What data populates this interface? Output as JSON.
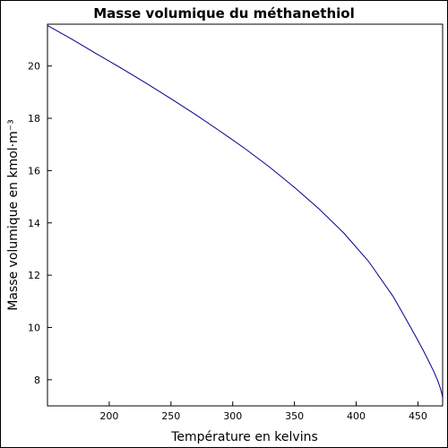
{
  "chart_data": {
    "type": "line",
    "title": "Masse volumique du méthanethiol",
    "xlabel": "Température en kelvins",
    "ylabel": "Masse volumique en kmol·m⁻³",
    "xlim": [
      150,
      470
    ],
    "ylim": [
      7,
      21.6
    ],
    "xticks": [
      200,
      250,
      300,
      350,
      400,
      450
    ],
    "yticks": [
      8,
      10,
      12,
      14,
      16,
      18,
      20
    ],
    "grid": false,
    "line_color": "#00008b",
    "series": [
      {
        "x": [
          150,
          170,
          190,
          210,
          230,
          250,
          270,
          290,
          310,
          330,
          350,
          370,
          390,
          410,
          430,
          440,
          450,
          455,
          460,
          463,
          466,
          468,
          469.5,
          470
        ],
        "values": [
          21.55,
          21.02,
          20.46,
          19.91,
          19.34,
          18.75,
          18.14,
          17.5,
          16.84,
          16.13,
          15.36,
          14.53,
          13.61,
          12.53,
          11.18,
          10.35,
          9.5,
          9.06,
          8.59,
          8.3,
          7.97,
          7.7,
          7.45,
          7.3
        ]
      }
    ]
  }
}
